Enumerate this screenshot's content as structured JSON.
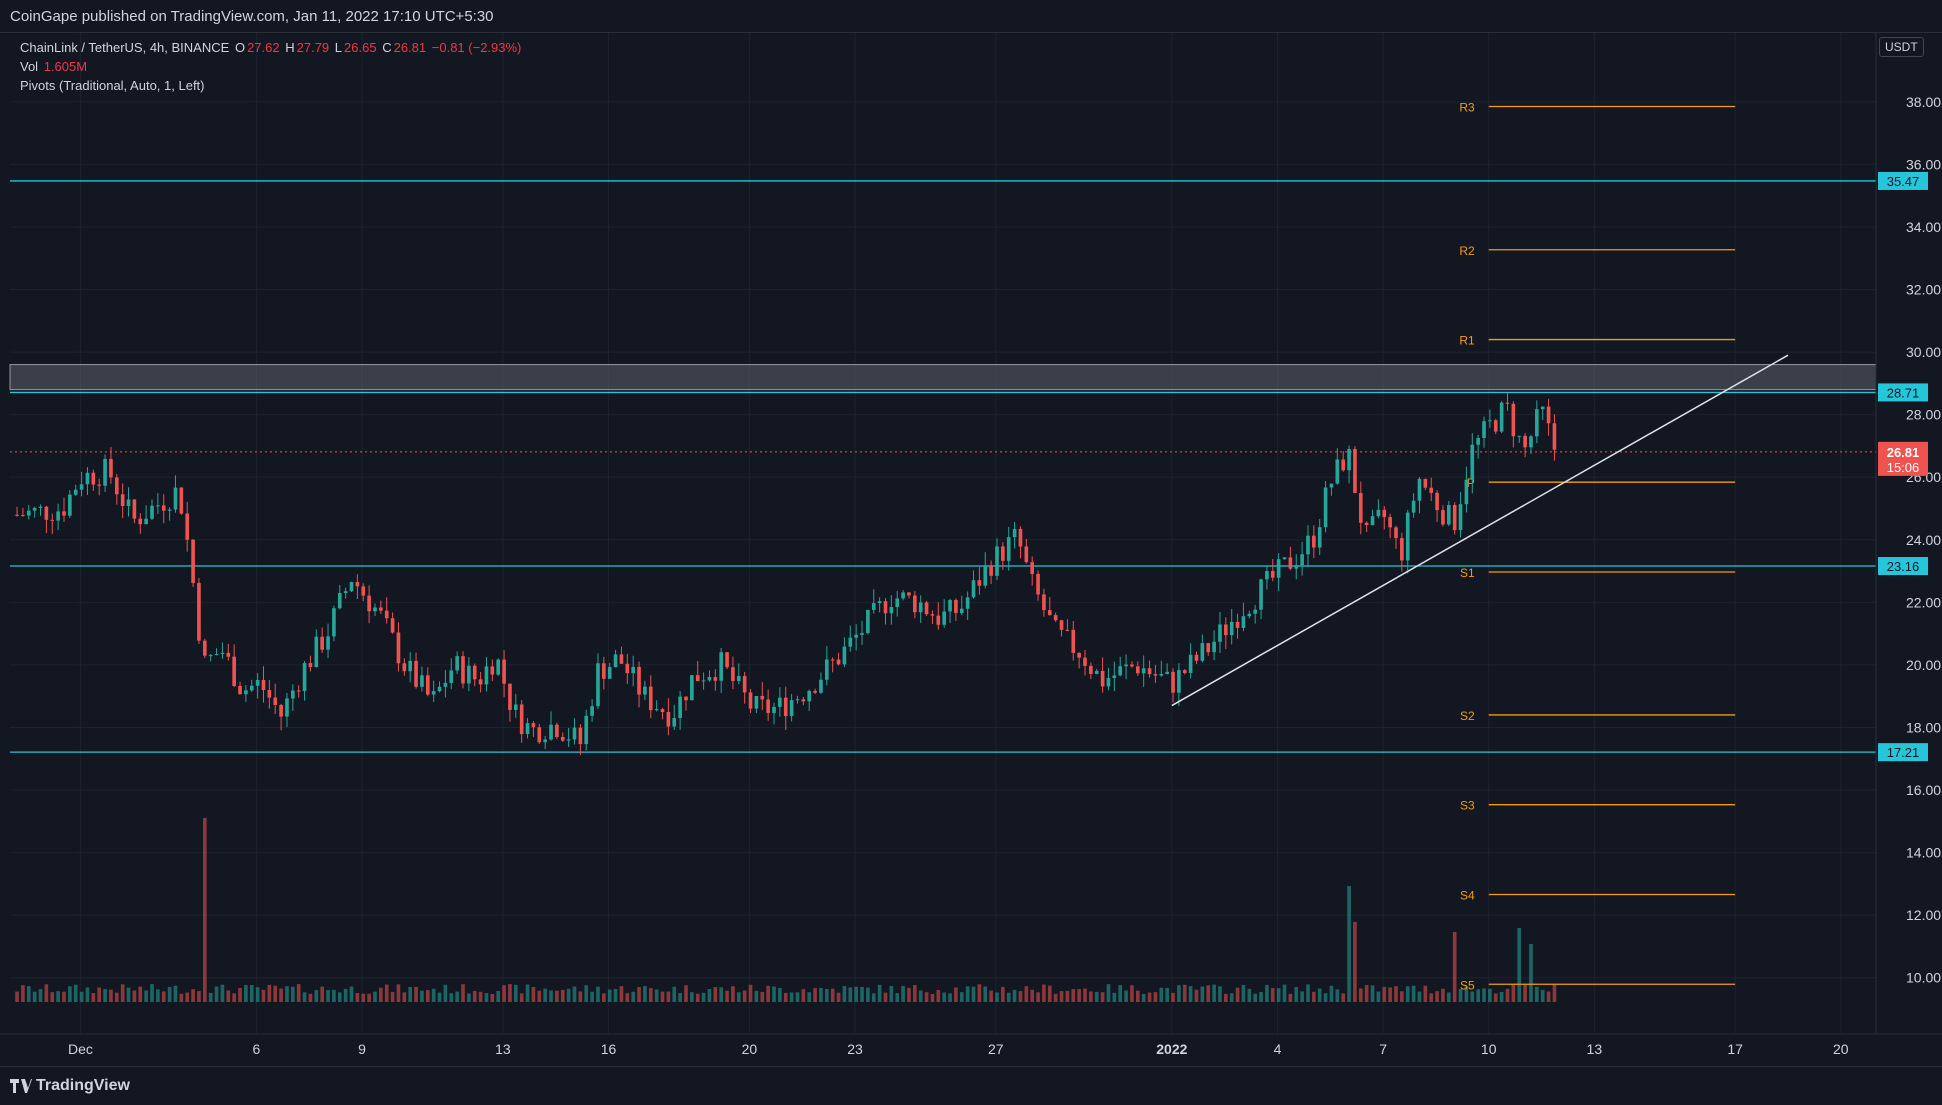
{
  "header": {
    "published": "CoinGape published on TradingView.com, Jan 11, 2022 17:10 UTC+5:30"
  },
  "legend": {
    "symbol": "ChainLink / TetherUS, 4h, BINANCE",
    "o_label": "O",
    "o": "27.62",
    "h_label": "H",
    "h": "27.79",
    "l_label": "L",
    "l": "26.65",
    "c_label": "C",
    "c": "26.81",
    "change": "−0.81 (−2.93%)",
    "vol_label": "Vol",
    "vol": "1.605M",
    "pivots": "Pivots (Traditional, Auto, 1, Left)"
  },
  "currency": "USDT",
  "footer": {
    "brand": "TradingView"
  },
  "colors": {
    "up": "#26a69a",
    "down": "#ef5350",
    "level": "#26c6da",
    "pivot": "#f39c12",
    "background": "#131722"
  },
  "chart_data": {
    "type": "candlestick",
    "symbol": "ChainLink / TetherUS",
    "interval": "4h",
    "exchange": "BINANCE",
    "y_range": [
      8.2,
      40.2
    ],
    "y_ticks": [
      10,
      12,
      14,
      16,
      18,
      20,
      22,
      24,
      26,
      28,
      30,
      32,
      34,
      36,
      38
    ],
    "y_tick_labels": [
      "10.00",
      "12.00",
      "14.00",
      "16.00",
      "18.00",
      "20.00",
      "22.00",
      "24.00",
      "26.00",
      "28.00",
      "30.00",
      "32.00",
      "34.00",
      "36.00",
      "38.00"
    ],
    "x_range_days": [
      -1,
      52
    ],
    "x_ticks": [
      {
        "day": 1,
        "label": "Dec"
      },
      {
        "day": 6,
        "label": "6"
      },
      {
        "day": 9,
        "label": "9"
      },
      {
        "day": 13,
        "label": "13"
      },
      {
        "day": 16,
        "label": "16"
      },
      {
        "day": 20,
        "label": "20"
      },
      {
        "day": 23,
        "label": "23"
      },
      {
        "day": 27,
        "label": "27"
      },
      {
        "day": 32,
        "label": "2022"
      },
      {
        "day": 35,
        "label": "4"
      },
      {
        "day": 38,
        "label": "7"
      },
      {
        "day": 41,
        "label": "10"
      },
      {
        "day": 44,
        "label": "13"
      },
      {
        "day": 48,
        "label": "17"
      },
      {
        "day": 51,
        "label": "20"
      }
    ],
    "price_path": [
      {
        "day": -0.8,
        "price": 24.8
      },
      {
        "day": 0.5,
        "price": 25.0
      },
      {
        "day": 1.0,
        "price": 26.0
      },
      {
        "day": 1.8,
        "price": 26.2
      },
      {
        "day": 2.5,
        "price": 24.6
      },
      {
        "day": 3.8,
        "price": 25.6
      },
      {
        "day": 4.1,
        "price": 23.5
      },
      {
        "day": 4.5,
        "price": 20.0
      },
      {
        "day": 5.0,
        "price": 20.5
      },
      {
        "day": 5.6,
        "price": 19.2
      },
      {
        "day": 6.1,
        "price": 19.4
      },
      {
        "day": 6.7,
        "price": 18.4
      },
      {
        "day": 7.3,
        "price": 19.8
      },
      {
        "day": 8.0,
        "price": 21.0
      },
      {
        "day": 8.7,
        "price": 22.8
      },
      {
        "day": 9.5,
        "price": 21.6
      },
      {
        "day": 10.2,
        "price": 20.0
      },
      {
        "day": 11.0,
        "price": 18.8
      },
      {
        "day": 11.6,
        "price": 20.0
      },
      {
        "day": 12.3,
        "price": 19.5
      },
      {
        "day": 12.8,
        "price": 20.3
      },
      {
        "day": 13.3,
        "price": 18.5
      },
      {
        "day": 13.8,
        "price": 17.9
      },
      {
        "day": 14.5,
        "price": 18.1
      },
      {
        "day": 15.2,
        "price": 17.5
      },
      {
        "day": 15.7,
        "price": 19.8
      },
      {
        "day": 16.3,
        "price": 20.2
      },
      {
        "day": 17.0,
        "price": 19.0
      },
      {
        "day": 17.8,
        "price": 18.4
      },
      {
        "day": 18.4,
        "price": 19.6
      },
      {
        "day": 19.2,
        "price": 20.0
      },
      {
        "day": 20.1,
        "price": 18.6
      },
      {
        "day": 20.8,
        "price": 18.6
      },
      {
        "day": 21.6,
        "price": 19.2
      },
      {
        "day": 22.5,
        "price": 20.2
      },
      {
        "day": 23.5,
        "price": 21.5
      },
      {
        "day": 24.0,
        "price": 22.2
      },
      {
        "day": 24.8,
        "price": 22.0
      },
      {
        "day": 25.4,
        "price": 21.5
      },
      {
        "day": 26.0,
        "price": 21.8
      },
      {
        "day": 26.8,
        "price": 23.2
      },
      {
        "day": 27.6,
        "price": 24.1
      },
      {
        "day": 28.0,
        "price": 22.6
      },
      {
        "day": 28.7,
        "price": 21.0
      },
      {
        "day": 29.4,
        "price": 20.4
      },
      {
        "day": 30.0,
        "price": 19.5
      },
      {
        "day": 31.0,
        "price": 20.0
      },
      {
        "day": 32.0,
        "price": 19.4
      },
      {
        "day": 33.0,
        "price": 20.5
      },
      {
        "day": 34.0,
        "price": 21.8
      },
      {
        "day": 35.0,
        "price": 22.9
      },
      {
        "day": 36.0,
        "price": 24.0
      },
      {
        "day": 36.5,
        "price": 25.8
      },
      {
        "day": 37.0,
        "price": 26.8
      },
      {
        "day": 37.5,
        "price": 24.0
      },
      {
        "day": 38.0,
        "price": 24.8
      },
      {
        "day": 38.5,
        "price": 23.5
      },
      {
        "day": 39.0,
        "price": 26.0
      },
      {
        "day": 39.5,
        "price": 25.2
      },
      {
        "day": 40.0,
        "price": 24.5
      },
      {
        "day": 40.5,
        "price": 26.8
      },
      {
        "day": 41.0,
        "price": 27.6
      },
      {
        "day": 41.5,
        "price": 28.2
      },
      {
        "day": 42.0,
        "price": 26.8
      },
      {
        "day": 42.5,
        "price": 28.1
      },
      {
        "day": 42.9,
        "price": 26.81
      }
    ],
    "last_price": {
      "value": 26.81,
      "label": "26.81",
      "countdown": "15:06"
    },
    "horizontal_levels": [
      {
        "value": 35.47,
        "label": "35.47"
      },
      {
        "value": 28.71,
        "label": "28.71"
      },
      {
        "value": 23.16,
        "label": "23.16"
      },
      {
        "value": 17.21,
        "label": "17.21"
      }
    ],
    "resistance_zone": {
      "from": 28.8,
      "to": 29.6
    },
    "pivots": [
      {
        "name": "R3",
        "value": 37.85
      },
      {
        "name": "R2",
        "value": 33.27
      },
      {
        "name": "R1",
        "value": 30.4
      },
      {
        "name": "P",
        "value": 25.84
      },
      {
        "name": "S1",
        "value": 22.97
      },
      {
        "name": "S2",
        "value": 18.4
      },
      {
        "name": "S3",
        "value": 15.53
      },
      {
        "name": "S4",
        "value": 12.66
      },
      {
        "name": "S5",
        "value": 9.79
      }
    ],
    "pivot_line_days": [
      41.0,
      48.0
    ],
    "trendline": [
      {
        "day": 32.0,
        "price": 18.7
      },
      {
        "day": 49.5,
        "price": 29.9
      }
    ],
    "volume_spikes": [
      {
        "day": 4.5,
        "rel": 0.92
      },
      {
        "day": 37.0,
        "rel": 0.58
      },
      {
        "day": 37.2,
        "rel": 0.4
      },
      {
        "day": 40.0,
        "rel": 0.35
      },
      {
        "day": 41.8,
        "rel": 0.37
      },
      {
        "day": 42.2,
        "rel": 0.29
      }
    ]
  }
}
